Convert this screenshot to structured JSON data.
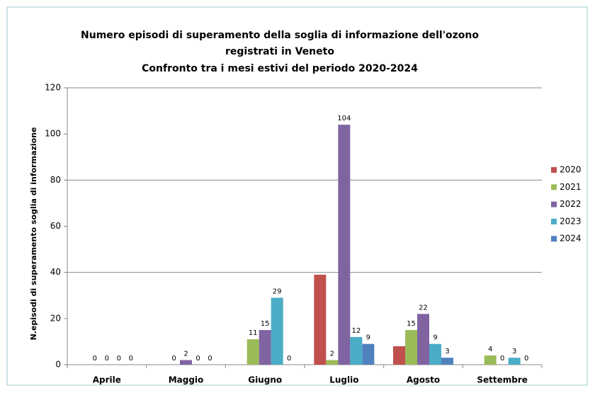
{
  "chart_data": {
    "type": "bar",
    "title": [
      "Numero episodi di superamento della soglia di informazione dell'ozono",
      "registrati in Veneto",
      "Confronto tra i mesi estivi del periodo 2020-2024"
    ],
    "y_label": "N.episodi di superamento soglia di informazione",
    "categories": [
      "Aprile",
      "Maggio",
      "Giugno",
      "Luglio",
      "Agosto",
      "Settembre"
    ],
    "series": [
      {
        "name": "2020",
        "color": "#c0504d",
        "data_labels": false,
        "values": [
          null,
          null,
          null,
          39,
          8,
          null
        ]
      },
      {
        "name": "2021",
        "color": "#9bbb59",
        "data_labels": true,
        "values": [
          0,
          0,
          11,
          2,
          15,
          4
        ]
      },
      {
        "name": "2022",
        "color": "#8064a2",
        "data_labels": true,
        "values": [
          0,
          2,
          15,
          104,
          22,
          0
        ]
      },
      {
        "name": "2023",
        "color": "#4bacc6",
        "data_labels": true,
        "values": [
          0,
          0,
          29,
          12,
          9,
          3
        ]
      },
      {
        "name": "2024",
        "color": "#4f81bd",
        "data_labels": true,
        "values": [
          0,
          0,
          0,
          9,
          3,
          0
        ]
      }
    ],
    "ylim": [
      0,
      120
    ],
    "yticks": [
      0,
      20,
      40,
      60,
      80,
      100,
      120
    ],
    "ygrid": [
      40,
      80,
      120
    ],
    "legend": "right"
  }
}
